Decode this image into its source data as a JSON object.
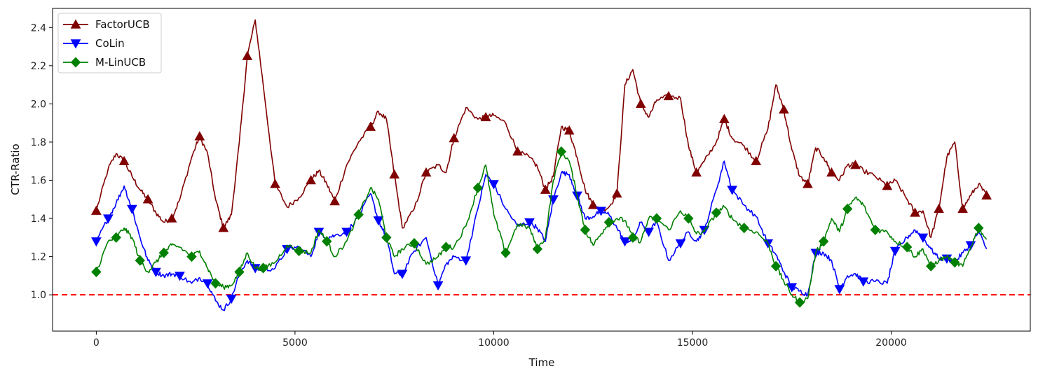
{
  "chart_data": {
    "type": "line",
    "title": "",
    "xlabel": "Time",
    "ylabel": "CTR-Ratio",
    "xlim": [
      -1100,
      23500
    ],
    "ylim": [
      0.81,
      2.5
    ],
    "xticks": [
      0,
      5000,
      10000,
      15000,
      20000
    ],
    "yticks": [
      1.0,
      1.2,
      1.4,
      1.6,
      1.8,
      2.0,
      2.2,
      2.4
    ],
    "grid": false,
    "legend_position": "top-left",
    "reference_line": {
      "y": 1.0,
      "color": "#ff0000",
      "style": "dashed"
    },
    "x": [
      0,
      300,
      500,
      700,
      900,
      1100,
      1300,
      1500,
      1700,
      1900,
      2100,
      2400,
      2600,
      2800,
      3000,
      3200,
      3400,
      3600,
      3800,
      4000,
      4200,
      4500,
      4800,
      5100,
      5400,
      5600,
      5800,
      6000,
      6300,
      6600,
      6900,
      7100,
      7300,
      7500,
      7700,
      8000,
      8300,
      8600,
      8800,
      9000,
      9300,
      9600,
      9800,
      10000,
      10300,
      10600,
      10900,
      11100,
      11300,
      11500,
      11700,
      11900,
      12100,
      12300,
      12500,
      12700,
      12900,
      13100,
      13300,
      13500,
      13700,
      13900,
      14100,
      14400,
      14700,
      14900,
      15100,
      15300,
      15600,
      15800,
      16000,
      16300,
      16600,
      16900,
      17100,
      17300,
      17500,
      17700,
      17900,
      18100,
      18300,
      18500,
      18700,
      18900,
      19100,
      19300,
      19600,
      19900,
      20100,
      20400,
      20600,
      20800,
      21000,
      21200,
      21400,
      21600,
      21800,
      22000,
      22200,
      22400
    ],
    "series": [
      {
        "name": "FactorUCB",
        "color": "#800000",
        "marker": "triangle-up",
        "values": [
          1.44,
          1.66,
          1.74,
          1.7,
          1.62,
          1.55,
          1.5,
          1.43,
          1.38,
          1.4,
          1.5,
          1.72,
          1.83,
          1.74,
          1.5,
          1.35,
          1.42,
          1.8,
          2.25,
          2.44,
          2.1,
          1.58,
          1.46,
          1.51,
          1.6,
          1.65,
          1.58,
          1.49,
          1.68,
          1.8,
          1.88,
          1.96,
          1.92,
          1.63,
          1.35,
          1.45,
          1.64,
          1.68,
          1.64,
          1.82,
          1.98,
          1.92,
          1.93,
          1.94,
          1.9,
          1.75,
          1.72,
          1.67,
          1.55,
          1.62,
          1.88,
          1.86,
          1.72,
          1.55,
          1.47,
          1.44,
          1.46,
          1.53,
          2.1,
          2.18,
          2.0,
          1.93,
          2.02,
          2.04,
          2.03,
          1.78,
          1.64,
          1.7,
          1.8,
          1.92,
          1.82,
          1.78,
          1.7,
          1.87,
          2.1,
          1.97,
          1.76,
          1.62,
          1.58,
          1.77,
          1.72,
          1.64,
          1.6,
          1.68,
          1.68,
          1.65,
          1.62,
          1.57,
          1.6,
          1.5,
          1.43,
          1.44,
          1.3,
          1.45,
          1.72,
          1.8,
          1.45,
          1.52,
          1.58,
          1.52
        ]
      },
      {
        "name": "CoLin",
        "color": "#0000ff",
        "marker": "triangle-down",
        "values": [
          1.28,
          1.4,
          1.48,
          1.57,
          1.45,
          1.3,
          1.18,
          1.12,
          1.1,
          1.11,
          1.1,
          1.06,
          1.09,
          1.06,
          0.97,
          0.92,
          0.98,
          1.11,
          1.18,
          1.14,
          1.13,
          1.14,
          1.24,
          1.25,
          1.2,
          1.33,
          1.3,
          1.31,
          1.33,
          1.41,
          1.53,
          1.39,
          1.3,
          1.11,
          1.11,
          1.23,
          1.3,
          1.05,
          1.16,
          1.2,
          1.18,
          1.45,
          1.63,
          1.58,
          1.45,
          1.36,
          1.38,
          1.35,
          1.28,
          1.5,
          1.64,
          1.63,
          1.52,
          1.4,
          1.41,
          1.44,
          1.42,
          1.35,
          1.28,
          1.29,
          1.38,
          1.33,
          1.38,
          1.18,
          1.27,
          1.33,
          1.28,
          1.34,
          1.55,
          1.7,
          1.55,
          1.47,
          1.41,
          1.27,
          1.21,
          1.12,
          1.04,
          1.02,
          1.0,
          1.22,
          1.22,
          1.18,
          1.03,
          1.1,
          1.11,
          1.07,
          1.07,
          1.06,
          1.23,
          1.3,
          1.34,
          1.3,
          1.24,
          1.19,
          1.19,
          1.17,
          1.22,
          1.26,
          1.33,
          1.24
        ]
      },
      {
        "name": "M-LinUCB",
        "color": "#008000",
        "marker": "diamond",
        "values": [
          1.12,
          1.28,
          1.3,
          1.35,
          1.3,
          1.18,
          1.12,
          1.17,
          1.22,
          1.26,
          1.25,
          1.2,
          1.23,
          1.14,
          1.06,
          1.04,
          1.05,
          1.12,
          1.22,
          1.14,
          1.14,
          1.17,
          1.26,
          1.23,
          1.22,
          1.34,
          1.28,
          1.2,
          1.28,
          1.42,
          1.56,
          1.5,
          1.3,
          1.2,
          1.24,
          1.27,
          1.16,
          1.2,
          1.25,
          1.25,
          1.36,
          1.56,
          1.68,
          1.42,
          1.22,
          1.37,
          1.35,
          1.24,
          1.3,
          1.6,
          1.75,
          1.7,
          1.52,
          1.34,
          1.26,
          1.32,
          1.38,
          1.4,
          1.39,
          1.3,
          1.28,
          1.4,
          1.4,
          1.34,
          1.44,
          1.4,
          1.32,
          1.33,
          1.43,
          1.46,
          1.4,
          1.35,
          1.33,
          1.27,
          1.15,
          1.07,
          1.0,
          0.96,
          0.98,
          1.22,
          1.28,
          1.4,
          1.33,
          1.45,
          1.51,
          1.47,
          1.34,
          1.33,
          1.28,
          1.25,
          1.2,
          1.24,
          1.15,
          1.18,
          1.2,
          1.17,
          1.15,
          1.25,
          1.35,
          1.29
        ]
      }
    ]
  }
}
